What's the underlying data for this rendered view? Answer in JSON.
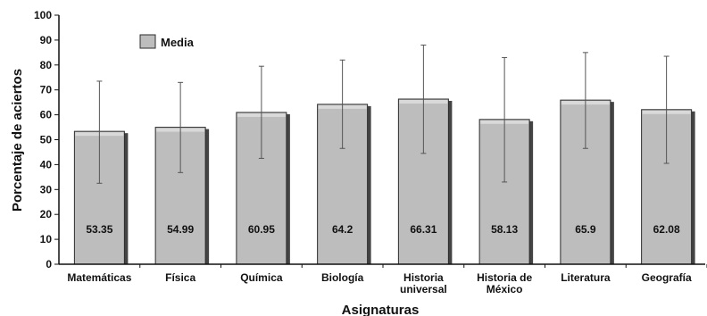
{
  "chart_data": {
    "type": "bar",
    "categories": [
      [
        "Matemáticas"
      ],
      [
        "Física"
      ],
      [
        "Química"
      ],
      [
        "Biología"
      ],
      [
        "Historia",
        "universal"
      ],
      [
        "Historia de",
        "México"
      ],
      [
        "Literatura"
      ],
      [
        "Geografía"
      ]
    ],
    "series": [
      {
        "name": "Media",
        "values": [
          53.35,
          54.99,
          60.95,
          64.2,
          66.31,
          58.13,
          65.9,
          62.08
        ],
        "error_low": [
          32.5,
          36.8,
          42.5,
          46.5,
          44.5,
          33.0,
          46.5,
          40.5
        ],
        "error_high": [
          73.5,
          73.0,
          79.5,
          82.0,
          88.0,
          83.0,
          85.0,
          83.5
        ]
      }
    ],
    "data_labels": [
      "53.35",
      "54.99",
      "60.95",
      "64.2",
      "66.31",
      "58.13",
      "65.9",
      "62.08"
    ],
    "xlabel": "Asignaturas",
    "ylabel": "Porcentaje de aciertos",
    "ylim": [
      0,
      100
    ],
    "yticks": [
      0,
      10,
      20,
      30,
      40,
      50,
      60,
      70,
      80,
      90,
      100
    ],
    "grid": false,
    "legend": "top-left",
    "colors": {
      "bar_fill": "#bdbdbd",
      "bar_highlight": "#d9d9d9",
      "bar_edge": "#2b2b2b",
      "bar_shadow": "#444444",
      "error_bar": "#555555",
      "axis": "#111111"
    }
  }
}
